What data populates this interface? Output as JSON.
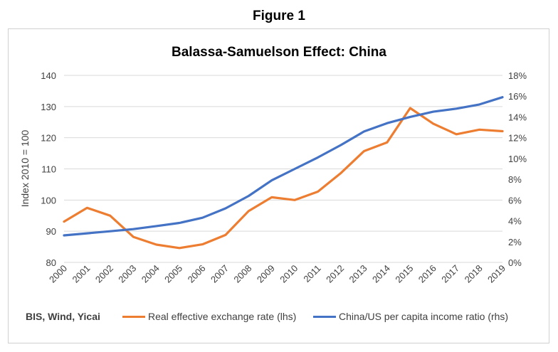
{
  "figure_label": "Figure 1",
  "source": "BIS, Wind, Yicai",
  "colors": {
    "reer": "#ed7d31",
    "income": "#4472c4",
    "grid": "#d9d9d9",
    "text": "#404040"
  },
  "chart_data": {
    "type": "line",
    "title": "Balassa-Samuelson Effect: China",
    "ylabel": "Index 2010 = 100",
    "x": [
      "2000",
      "2001",
      "2002",
      "2003",
      "2004",
      "2005",
      "2006",
      "2007",
      "2008",
      "2009",
      "2010",
      "2011",
      "2012",
      "2013",
      "2014",
      "2015",
      "2016",
      "2017",
      "2018",
      "2019"
    ],
    "y_left": {
      "min": 80,
      "max": 140,
      "ticks": [
        "140",
        "130",
        "120",
        "110",
        "100",
        "90",
        "80"
      ]
    },
    "y_right": {
      "min": 0,
      "max": 18,
      "ticks": [
        "18%",
        "16%",
        "14%",
        "12%",
        "10%",
        "8%",
        "6%",
        "4%",
        "2%",
        "0%"
      ]
    },
    "grid": true,
    "legend_position": "bottom",
    "series": [
      {
        "name": "Real effective exchange rate (lhs)",
        "axis": "left",
        "values": [
          93.1,
          97.5,
          95.0,
          88.2,
          85.7,
          84.6,
          85.8,
          88.8,
          96.5,
          100.9,
          100.0,
          102.7,
          108.7,
          115.7,
          118.5,
          129.5,
          124.5,
          121.1,
          122.6,
          122.1
        ]
      },
      {
        "name": "China/US per capita income ratio (rhs)",
        "axis": "right",
        "values": [
          2.6,
          2.8,
          3.0,
          3.2,
          3.5,
          3.8,
          4.3,
          5.2,
          6.4,
          7.9,
          9.0,
          10.1,
          11.3,
          12.6,
          13.4,
          14.0,
          14.5,
          14.8,
          15.2,
          15.9
        ]
      }
    ]
  }
}
